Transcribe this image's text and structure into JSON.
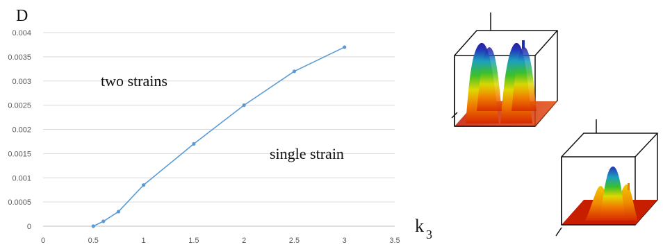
{
  "chart_data": {
    "type": "line",
    "ylabel": "D",
    "xlabel_main": "k",
    "xlabel_sub": "3",
    "xlim": [
      0,
      3.5
    ],
    "ylim": [
      0,
      0.004
    ],
    "x_ticks": [
      "0",
      "0.5",
      "1",
      "1.5",
      "2",
      "2.5",
      "3",
      "3.5"
    ],
    "y_ticks": [
      "0",
      "0.0005",
      "0.001",
      "0.0015",
      "0.002",
      "0.0025",
      "0.003",
      "0.0035",
      "0.004"
    ],
    "grid": "horizontal",
    "series": [
      {
        "x": [
          0.5,
          0.6,
          0.75,
          1.0,
          1.5,
          2.0,
          2.5,
          3.0
        ],
        "values": [
          0.0,
          0.0001,
          0.0003,
          0.00085,
          0.0017,
          0.0025,
          0.0032,
          0.0037
        ]
      }
    ],
    "annotations": [
      "two strains",
      "single strain"
    ]
  },
  "colors": {
    "line": "#5b9bd5",
    "grid": "#d9d9d9",
    "axis": "#bfbfbf"
  },
  "panels": [
    {
      "icon": "two-peak-surface-plot"
    },
    {
      "icon": "single-peak-surface-plot"
    }
  ]
}
